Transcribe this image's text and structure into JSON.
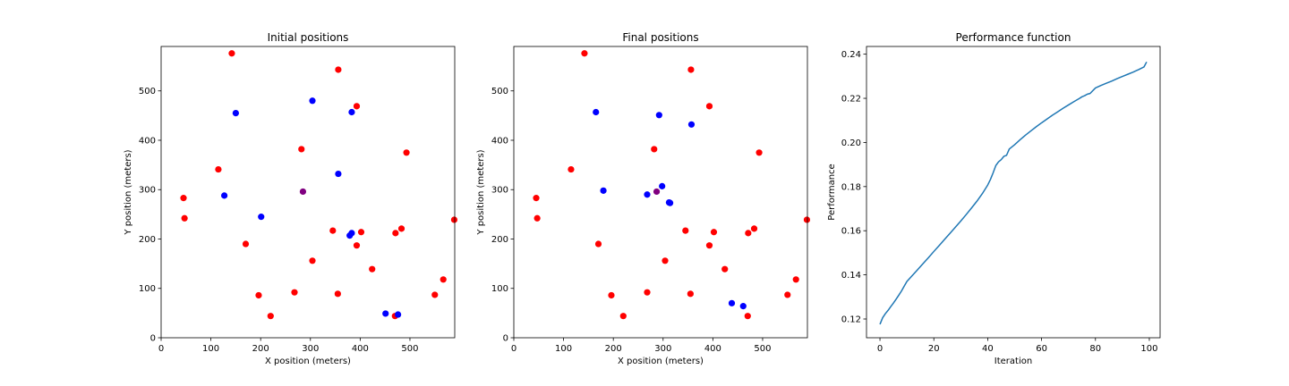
{
  "chart_data": [
    {
      "type": "scatter",
      "title": "Initial positions",
      "xlabel": "X position (meters)",
      "ylabel": "Y position (meters)",
      "xlim": [
        0,
        590
      ],
      "ylim": [
        0,
        590
      ],
      "xticks": [
        0,
        100,
        200,
        300,
        400,
        500
      ],
      "yticks": [
        0,
        100,
        200,
        300,
        400,
        500
      ],
      "grid": false,
      "colors": {
        "red": "#ff0000",
        "blue": "#0000ff",
        "purple": "#800080"
      },
      "series": [
        {
          "color": "red",
          "points": [
            [
              142,
              576
            ],
            [
              356,
              543
            ],
            [
              393,
              469
            ],
            [
              493,
              375
            ],
            [
              282,
              382
            ],
            [
              115,
              341
            ],
            [
              45,
              283
            ],
            [
              47,
              242
            ],
            [
              589,
              239
            ],
            [
              402,
              214
            ],
            [
              471,
              212
            ],
            [
              483,
              221
            ],
            [
              345,
              217
            ],
            [
              170,
              190
            ],
            [
              393,
              187
            ],
            [
              304,
              156
            ],
            [
              424,
              139
            ],
            [
              567,
              118
            ],
            [
              550,
              87
            ],
            [
              196,
              86
            ],
            [
              268,
              92
            ],
            [
              355,
              89
            ],
            [
              220,
              44
            ],
            [
              470,
              44
            ]
          ]
        },
        {
          "color": "blue",
          "points": [
            [
              150,
              455
            ],
            [
              304,
              480
            ],
            [
              383,
              457
            ],
            [
              356,
              332
            ],
            [
              127,
              288
            ],
            [
              201,
              245
            ],
            [
              383,
              212
            ],
            [
              379,
              207
            ],
            [
              451,
              49
            ],
            [
              476,
              47
            ]
          ]
        },
        {
          "color": "purple",
          "points": [
            [
              285,
              296
            ]
          ]
        }
      ]
    },
    {
      "type": "scatter",
      "title": "Final positions",
      "xlabel": "X position (meters)",
      "ylabel": "Y position (meters)",
      "xlim": [
        0,
        590
      ],
      "ylim": [
        0,
        590
      ],
      "xticks": [
        0,
        100,
        200,
        300,
        400,
        500
      ],
      "yticks": [
        0,
        100,
        200,
        300,
        400,
        500
      ],
      "grid": false,
      "colors": {
        "red": "#ff0000",
        "blue": "#0000ff",
        "purple": "#800080"
      },
      "series": [
        {
          "color": "red",
          "points": [
            [
              142,
              576
            ],
            [
              356,
              543
            ],
            [
              393,
              469
            ],
            [
              493,
              375
            ],
            [
              282,
              382
            ],
            [
              115,
              341
            ],
            [
              45,
              283
            ],
            [
              47,
              242
            ],
            [
              589,
              239
            ],
            [
              402,
              214
            ],
            [
              471,
              212
            ],
            [
              483,
              221
            ],
            [
              345,
              217
            ],
            [
              170,
              190
            ],
            [
              393,
              187
            ],
            [
              304,
              156
            ],
            [
              424,
              139
            ],
            [
              567,
              118
            ],
            [
              550,
              87
            ],
            [
              196,
              86
            ],
            [
              268,
              92
            ],
            [
              355,
              89
            ],
            [
              220,
              44
            ],
            [
              470,
              44
            ]
          ]
        },
        {
          "color": "blue",
          "points": [
            [
              165,
              457
            ],
            [
              292,
              451
            ],
            [
              357,
              432
            ],
            [
              180,
              298
            ],
            [
              268,
              290
            ],
            [
              298,
              307
            ],
            [
              312,
              274
            ],
            [
              314,
              273
            ],
            [
              438,
              70
            ],
            [
              461,
              64
            ]
          ]
        },
        {
          "color": "purple",
          "points": [
            [
              287,
              296
            ]
          ]
        }
      ]
    },
    {
      "type": "line",
      "title": "Performance function",
      "xlabel": "Iteration",
      "ylabel": "Performance",
      "xlim": [
        -5,
        104
      ],
      "ylim": [
        0.1115,
        0.2435
      ],
      "xticks": [
        0,
        20,
        40,
        60,
        80,
        100
      ],
      "yticks": [
        0.12,
        0.14,
        0.16,
        0.18,
        0.2,
        0.22,
        0.24
      ],
      "ytick_labels": [
        "0.12",
        "0.14",
        "0.16",
        "0.18",
        "0.20",
        "0.22",
        "0.24"
      ],
      "grid": false,
      "line_color": "#1f77b4",
      "series": [
        {
          "x": [
            0,
            1,
            2,
            3,
            4,
            5,
            6,
            7,
            8,
            9,
            10,
            12,
            14,
            16,
            18,
            20,
            22,
            24,
            26,
            28,
            30,
            32,
            34,
            36,
            38,
            40,
            41,
            42,
            43,
            44,
            45,
            46,
            47,
            48,
            50,
            52,
            54,
            56,
            58,
            60,
            62,
            64,
            66,
            68,
            70,
            72,
            74,
            75,
            76,
            77,
            78,
            80,
            82,
            84,
            86,
            88,
            90,
            92,
            94,
            96,
            98,
            99
          ],
          "y": [
            0.1176,
            0.1206,
            0.1224,
            0.1239,
            0.1256,
            0.1272,
            0.129,
            0.1308,
            0.1327,
            0.1349,
            0.137,
            0.1397,
            0.1424,
            0.1451,
            0.1478,
            0.1506,
            0.1533,
            0.1561,
            0.1588,
            0.1616,
            0.1644,
            0.1673,
            0.1703,
            0.1734,
            0.1768,
            0.1807,
            0.1832,
            0.1862,
            0.1895,
            0.1912,
            0.1922,
            0.1937,
            0.1942,
            0.197,
            0.199,
            0.2012,
            0.2033,
            0.2052,
            0.2071,
            0.2089,
            0.2106,
            0.2123,
            0.2139,
            0.2155,
            0.217,
            0.2185,
            0.2199,
            0.2207,
            0.2212,
            0.2219,
            0.2222,
            0.2247,
            0.2258,
            0.2268,
            0.2278,
            0.2289,
            0.2299,
            0.2309,
            0.2319,
            0.233,
            0.2342,
            0.2365
          ]
        }
      ]
    }
  ]
}
